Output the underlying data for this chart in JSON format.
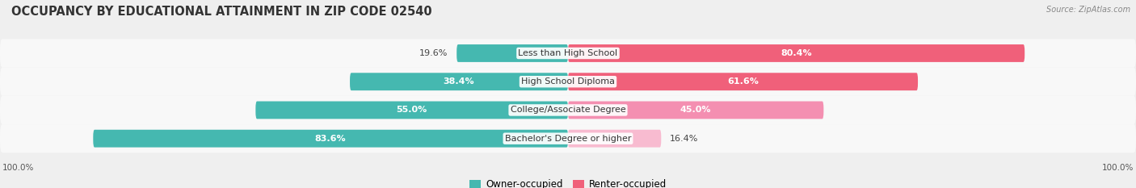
{
  "title": "OCCUPANCY BY EDUCATIONAL ATTAINMENT IN ZIP CODE 02540",
  "source": "Source: ZipAtlas.com",
  "categories": [
    "Less than High School",
    "High School Diploma",
    "College/Associate Degree",
    "Bachelor's Degree or higher"
  ],
  "owner_values": [
    19.6,
    38.4,
    55.0,
    83.6
  ],
  "renter_values": [
    80.4,
    61.6,
    45.0,
    16.4
  ],
  "owner_color": "#45b8b0",
  "renter_colors": [
    "#f0607a",
    "#f0607a",
    "#f48fb1",
    "#f8bbd0"
  ],
  "bg_color": "#efefef",
  "bar_bg_color": "#e2e2e2",
  "row_bg_color": "#f8f8f8",
  "title_fontsize": 10.5,
  "label_fontsize": 8,
  "cat_fontsize": 8,
  "bar_height": 0.62,
  "legend_owner_label": "Owner-occupied",
  "legend_renter_label": "Renter-occupied"
}
